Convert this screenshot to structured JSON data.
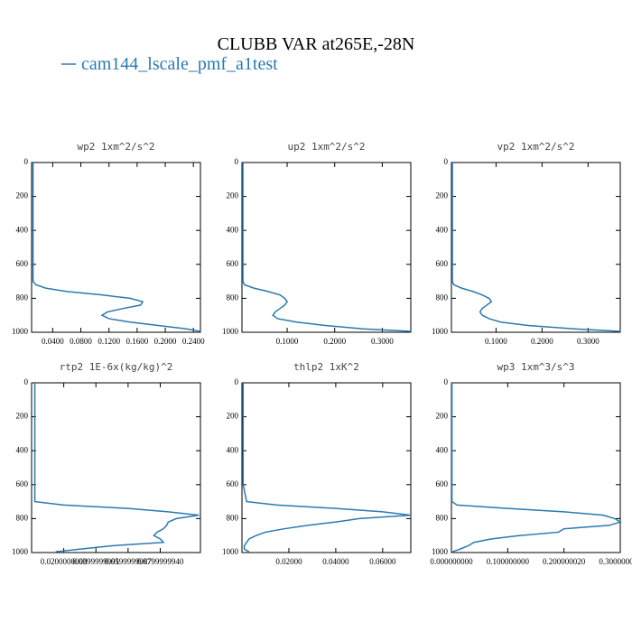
{
  "title": "CLUBB VAR at265E,-28N",
  "chart_data": [
    {
      "type": "line",
      "title": "wp2  1xm^2/s^2",
      "y": [
        0,
        100,
        200,
        300,
        400,
        500,
        600,
        700,
        720,
        740,
        760,
        780,
        800,
        820,
        840,
        860,
        880,
        900,
        920,
        940,
        960,
        980,
        995
      ],
      "ylim": [
        1000,
        0
      ],
      "yticks": [
        0,
        200,
        400,
        600,
        800,
        1000
      ],
      "xlim": [
        0.01,
        0.25
      ],
      "xticks": [
        {
          "value": 0.04,
          "label": "0.0400"
        },
        {
          "value": 0.08,
          "label": "0.0800"
        },
        {
          "value": 0.12,
          "label": "0.1200"
        },
        {
          "value": 0.16,
          "label": "0.1600"
        },
        {
          "value": 0.2,
          "label": "0.2000"
        },
        {
          "value": 0.24,
          "label": "0.2400"
        }
      ],
      "series": [
        {
          "name": "cam144_lscale_pmf_a1test",
          "color": "#2a7ab0",
          "values": [
            0.012,
            0.012,
            0.012,
            0.012,
            0.012,
            0.012,
            0.012,
            0.012,
            0.016,
            0.03,
            0.06,
            0.11,
            0.15,
            0.168,
            0.165,
            0.14,
            0.118,
            0.11,
            0.12,
            0.15,
            0.19,
            0.23,
            0.25
          ]
        }
      ]
    },
    {
      "type": "line",
      "title": "up2  1xm^2/s^2",
      "y": [
        0,
        100,
        200,
        300,
        400,
        500,
        600,
        700,
        720,
        740,
        760,
        780,
        800,
        820,
        840,
        860,
        880,
        900,
        920,
        940,
        960,
        980,
        995
      ],
      "ylim": [
        1000,
        0
      ],
      "yticks": [
        0,
        200,
        400,
        600,
        800,
        1000
      ],
      "xlim": [
        0.005,
        0.36
      ],
      "xticks": [
        {
          "value": 0.1,
          "label": "0.1000"
        },
        {
          "value": 0.2,
          "label": "0.2000"
        },
        {
          "value": 0.3,
          "label": "0.3000"
        }
      ],
      "series": [
        {
          "name": "cam144_lscale_pmf_a1test",
          "color": "#2a7ab0",
          "values": [
            0.007,
            0.007,
            0.007,
            0.007,
            0.007,
            0.007,
            0.007,
            0.007,
            0.01,
            0.03,
            0.06,
            0.085,
            0.095,
            0.1,
            0.095,
            0.085,
            0.075,
            0.07,
            0.08,
            0.12,
            0.18,
            0.26,
            0.36
          ]
        }
      ]
    },
    {
      "type": "line",
      "title": "vp2  1xm^2/s^2",
      "y": [
        0,
        100,
        200,
        300,
        400,
        500,
        600,
        700,
        720,
        740,
        760,
        780,
        800,
        820,
        840,
        860,
        880,
        900,
        920,
        940,
        960,
        980,
        995
      ],
      "ylim": [
        1000,
        0
      ],
      "yticks": [
        0,
        200,
        400,
        600,
        800,
        1000
      ],
      "xlim": [
        0.003,
        0.37
      ],
      "xticks": [
        {
          "value": 0.1,
          "label": "0.1000"
        },
        {
          "value": 0.2,
          "label": "0.2000"
        },
        {
          "value": 0.3,
          "label": "0.3000"
        }
      ],
      "series": [
        {
          "name": "cam144_lscale_pmf_a1test",
          "color": "#2a7ab0",
          "values": [
            0.005,
            0.005,
            0.005,
            0.005,
            0.005,
            0.005,
            0.005,
            0.005,
            0.008,
            0.025,
            0.05,
            0.07,
            0.085,
            0.09,
            0.08,
            0.07,
            0.065,
            0.07,
            0.085,
            0.11,
            0.17,
            0.27,
            0.37
          ]
        }
      ]
    },
    {
      "type": "line",
      "title": "rtp2  1E-6x(kg/kg)^2",
      "y": [
        0,
        100,
        200,
        300,
        400,
        500,
        600,
        700,
        720,
        740,
        760,
        780,
        800,
        820,
        840,
        860,
        880,
        900,
        920,
        940,
        960,
        980,
        995
      ],
      "ylim": [
        1000,
        0
      ],
      "yticks": [
        0,
        200,
        400,
        600,
        800,
        1000
      ],
      "xlim": [
        0,
        0.105
      ],
      "xticks": [
        {
          "value": 0.02,
          "label": "0.0200000000"
        },
        {
          "value": 0.04,
          "label": "0.0399999991"
        },
        {
          "value": 0.06,
          "label": "0.0599999987"
        },
        {
          "value": 0.08,
          "label": "0.0799999940"
        }
      ],
      "series": [
        {
          "name": "cam144_lscale_pmf_a1test",
          "color": "#2a7ab0",
          "values": [
            0.002,
            0.002,
            0.002,
            0.002,
            0.002,
            0.002,
            0.002,
            0.002,
            0.02,
            0.06,
            0.085,
            0.104,
            0.09,
            0.085,
            0.084,
            0.082,
            0.078,
            0.076,
            0.08,
            0.082,
            0.05,
            0.03,
            0.015
          ]
        }
      ]
    },
    {
      "type": "line",
      "title": "thlp2  1xK^2",
      "y": [
        0,
        100,
        200,
        300,
        400,
        500,
        600,
        700,
        720,
        740,
        760,
        780,
        800,
        820,
        840,
        860,
        880,
        900,
        920,
        940,
        960,
        980,
        995
      ],
      "ylim": [
        1000,
        0
      ],
      "yticks": [
        0,
        200,
        400,
        600,
        800,
        1000
      ],
      "xlim": [
        0,
        0.072
      ],
      "xticks": [
        {
          "value": 0.02,
          "label": "0.02000"
        },
        {
          "value": 0.04,
          "label": "0.04000"
        },
        {
          "value": 0.06,
          "label": "0.06000"
        }
      ],
      "series": [
        {
          "name": "cam144_lscale_pmf_a1test",
          "color": "#2a7ab0",
          "values": [
            0.0005,
            0.0005,
            0.0005,
            0.0005,
            0.0005,
            0.0005,
            0.0005,
            0.002,
            0.015,
            0.04,
            0.06,
            0.072,
            0.05,
            0.04,
            0.028,
            0.018,
            0.01,
            0.006,
            0.003,
            0.002,
            0.001,
            0.001,
            0.003
          ]
        }
      ]
    },
    {
      "type": "line",
      "title": "wp3  1xm^3/s^3",
      "y": [
        0,
        100,
        200,
        300,
        400,
        500,
        600,
        700,
        720,
        740,
        760,
        780,
        800,
        820,
        840,
        860,
        880,
        900,
        920,
        940,
        960,
        980,
        995
      ],
      "ylim": [
        1000,
        0
      ],
      "yticks": [
        0,
        200,
        400,
        600,
        800,
        1000
      ],
      "xlim": [
        0,
        0.3
      ],
      "xticks": [
        {
          "value": 0,
          "label": "0.000000000"
        },
        {
          "value": 0.1,
          "label": "0.100000000"
        },
        {
          "value": 0.2,
          "label": "0.200000020"
        },
        {
          "value": 0.3,
          "label": "0.300000010"
        }
      ],
      "series": [
        {
          "name": "cam144_lscale_pmf_a1test",
          "color": "#2a7ab0",
          "values": [
            0.001,
            0.001,
            0.001,
            0.001,
            0.001,
            0.001,
            0.001,
            0.001,
            0.01,
            0.1,
            0.2,
            0.27,
            0.29,
            0.3,
            0.28,
            0.2,
            0.19,
            0.12,
            0.07,
            0.04,
            0.03,
            0.015,
            0.002
          ]
        }
      ]
    }
  ]
}
